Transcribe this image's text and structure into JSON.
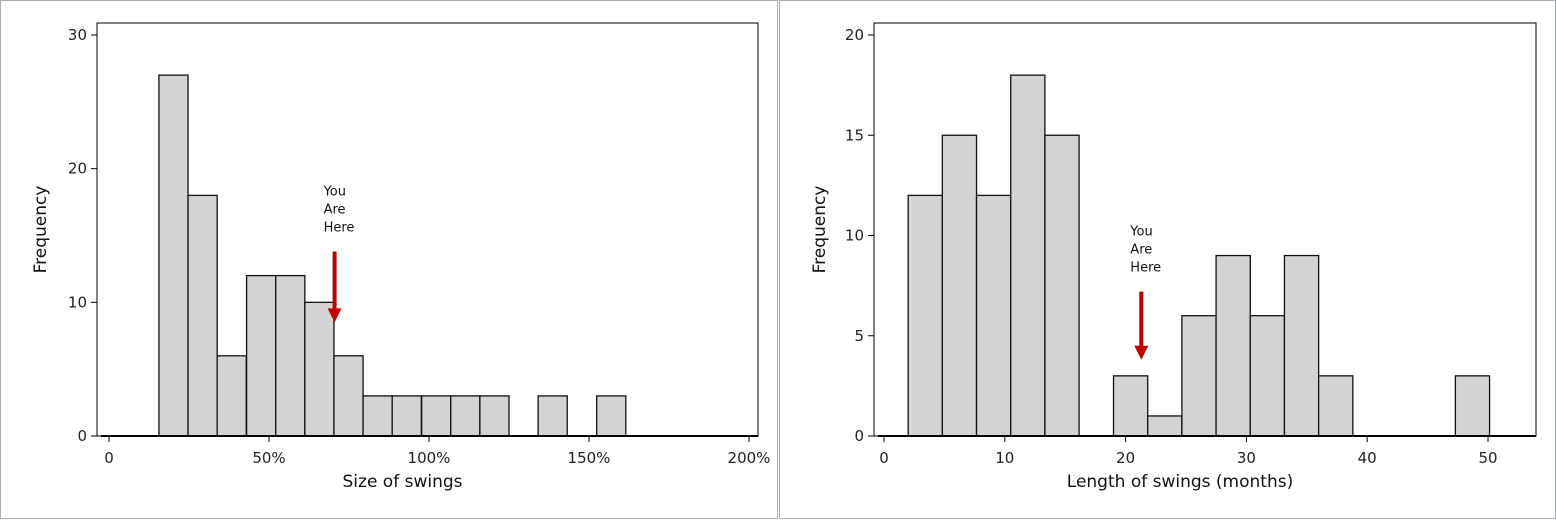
{
  "colors": {
    "bar_fill": "#d3d3d3",
    "bar_stroke": "#111111",
    "arrow": "#c00000",
    "frame": "#000000"
  },
  "chart_data": [
    {
      "type": "bar",
      "xlabel": "Size of swings",
      "ylabel": "Frequency",
      "xlim": [
        -5,
        200
      ],
      "ylim": [
        0,
        30
      ],
      "xticks": [
        0,
        50,
        100,
        150,
        200
      ],
      "xtick_labels": [
        "0",
        "50%",
        "100%",
        "150%",
        "200%"
      ],
      "yticks": [
        0,
        10,
        20,
        30
      ],
      "ytick_labels": [
        "0",
        "10",
        "20",
        "30"
      ],
      "bin_width": 9.1,
      "bins": [
        {
          "x0": 15.6,
          "value": 27
        },
        {
          "x0": 24.7,
          "value": 18
        },
        {
          "x0": 33.8,
          "value": 6
        },
        {
          "x0": 43.0,
          "value": 12
        },
        {
          "x0": 52.1,
          "value": 12
        },
        {
          "x0": 61.2,
          "value": 10
        },
        {
          "x0": 70.3,
          "value": 6
        },
        {
          "x0": 79.4,
          "value": 3
        },
        {
          "x0": 88.5,
          "value": 3
        },
        {
          "x0": 97.7,
          "value": 3
        },
        {
          "x0": 106.8,
          "value": 3
        },
        {
          "x0": 115.9,
          "value": 3
        },
        {
          "x0": 134.1,
          "value": 3
        },
        {
          "x0": 152.4,
          "value": 3
        }
      ],
      "annotation": {
        "lines": [
          "You",
          "Are",
          "Here"
        ],
        "x": 70.5,
        "arrow_from": 13.8,
        "arrow_to": 8.5
      }
    },
    {
      "type": "bar",
      "xlabel": "Length of swings (months)",
      "ylabel": "Frequency",
      "xlim": [
        -2,
        53
      ],
      "ylim": [
        0,
        20
      ],
      "xticks": [
        0,
        10,
        20,
        30,
        40,
        50
      ],
      "xtick_labels": [
        "0",
        "10",
        "20",
        "30",
        "40",
        "50"
      ],
      "yticks": [
        0,
        5,
        10,
        15,
        20
      ],
      "ytick_labels": [
        "0",
        "5",
        "10",
        "15",
        "20"
      ],
      "bin_width": 2.83,
      "bins": [
        {
          "x0": 2.0,
          "value": 12
        },
        {
          "x0": 4.83,
          "value": 15
        },
        {
          "x0": 7.66,
          "value": 12
        },
        {
          "x0": 10.49,
          "value": 18
        },
        {
          "x0": 13.32,
          "value": 15
        },
        {
          "x0": 19.0,
          "value": 3
        },
        {
          "x0": 21.83,
          "value": 1
        },
        {
          "x0": 24.66,
          "value": 6
        },
        {
          "x0": 27.49,
          "value": 9
        },
        {
          "x0": 30.32,
          "value": 6
        },
        {
          "x0": 33.15,
          "value": 9
        },
        {
          "x0": 35.98,
          "value": 3
        },
        {
          "x0": 47.3,
          "value": 3
        }
      ],
      "annotation": {
        "lines": [
          "You",
          "Are",
          "Here"
        ],
        "x": 21.3,
        "arrow_from": 7.2,
        "arrow_to": 3.8
      }
    }
  ]
}
